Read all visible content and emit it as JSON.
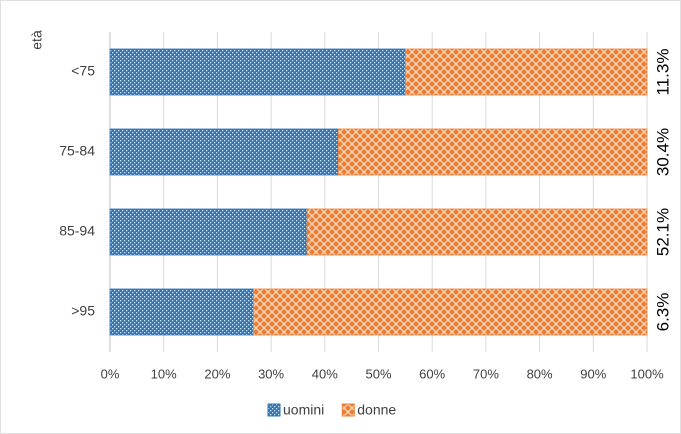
{
  "chart_data": {
    "type": "bar",
    "orientation": "horizontal",
    "stacked": true,
    "y_label": "età",
    "categories": [
      "<75",
      "75-84",
      "85-94",
      ">95"
    ],
    "series": [
      {
        "name": "uomini",
        "color": "#2e75b6",
        "values": [
          55,
          42.5,
          36.7,
          26.7
        ]
      },
      {
        "name": "donne",
        "color": "#ed7d31",
        "values": [
          45,
          57.5,
          63.3,
          73.3
        ]
      }
    ],
    "annotations": [
      "11.3%",
      "30.4%",
      "52.1%",
      "6.3%"
    ],
    "xlim": [
      0,
      100
    ],
    "xticks": [
      {
        "value": 0,
        "label": "0%"
      },
      {
        "value": 10,
        "label": "10%"
      },
      {
        "value": 20,
        "label": "20%"
      },
      {
        "value": 30,
        "label": "30%"
      },
      {
        "value": 40,
        "label": "40%"
      },
      {
        "value": 50,
        "label": "50%"
      },
      {
        "value": 60,
        "label": "60%"
      },
      {
        "value": 70,
        "label": "70%"
      },
      {
        "value": 80,
        "label": "80%"
      },
      {
        "value": 90,
        "label": "90%"
      },
      {
        "value": 100,
        "label": "100%"
      }
    ],
    "grid": true,
    "legend": "bottom"
  }
}
